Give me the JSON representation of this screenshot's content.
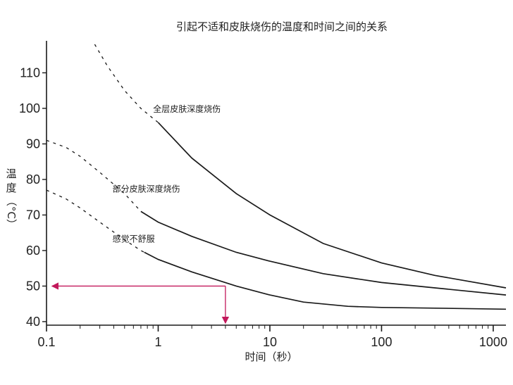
{
  "chart_data": {
    "type": "line",
    "title": "引起不适和皮肤烧伤的温度和时间之间的关系",
    "xlabel": "时间（秒）",
    "ylabel": [
      "温",
      "度",
      "（°C）"
    ],
    "x_scale": "log",
    "xlim": [
      0.1,
      1300
    ],
    "ylim": [
      39,
      119
    ],
    "x_ticks": [
      0.1,
      1,
      10,
      100,
      1000
    ],
    "x_tick_labels": [
      "0.1",
      "1",
      "10",
      "100",
      "1000"
    ],
    "y_ticks": [
      40,
      50,
      60,
      70,
      80,
      90,
      100,
      110
    ],
    "y_tick_labels": [
      "40",
      "50",
      "60",
      "70",
      "80",
      "90",
      "100",
      "110"
    ],
    "grid": false,
    "series": [
      {
        "name": "全层皮肤深度烧伤",
        "x": [
          0.27,
          0.35,
          0.5,
          0.7,
          1.0,
          2,
          5,
          10,
          30,
          100,
          300,
          1300
        ],
        "y": [
          118,
          112,
          105,
          100,
          96,
          86,
          76,
          70,
          62,
          56.5,
          53,
          49.5
        ],
        "dashed_until_x": 1.0
      },
      {
        "name": "部分皮肤深度烧伤",
        "x": [
          0.1,
          0.15,
          0.2,
          0.3,
          0.5,
          0.7,
          1.0,
          2,
          5,
          10,
          30,
          100,
          300,
          1300
        ],
        "y": [
          91,
          89,
          86.5,
          82,
          76,
          71,
          68,
          64,
          59.5,
          57,
          53.5,
          51,
          49.5,
          47.5
        ],
        "dashed_until_x": 0.7
      },
      {
        "name": "感觉不舒服",
        "x": [
          0.1,
          0.15,
          0.2,
          0.3,
          0.5,
          0.7,
          1.0,
          2,
          5,
          10,
          20,
          50,
          100,
          300,
          1300
        ],
        "y": [
          77,
          74.5,
          72,
          68,
          63,
          60,
          57.5,
          54,
          50,
          47.5,
          45.5,
          44.3,
          44,
          43.8,
          43.5
        ],
        "dashed_until_x": 0.75
      }
    ],
    "annotations": [
      {
        "text": "全层皮肤深度烧伤",
        "x": 0.9,
        "y": 99
      },
      {
        "text": "部分皮肤深度烧伤",
        "x": 0.39,
        "y": 76.5
      },
      {
        "text": "感觉不舒服",
        "x": 0.39,
        "y": 62.5
      }
    ],
    "reference": {
      "x": 4,
      "y": 50,
      "color": "#c2185b"
    },
    "colors": {
      "curve": "#1a1a1a",
      "axis": "#1a1a1a",
      "reference": "#c2185b"
    }
  }
}
